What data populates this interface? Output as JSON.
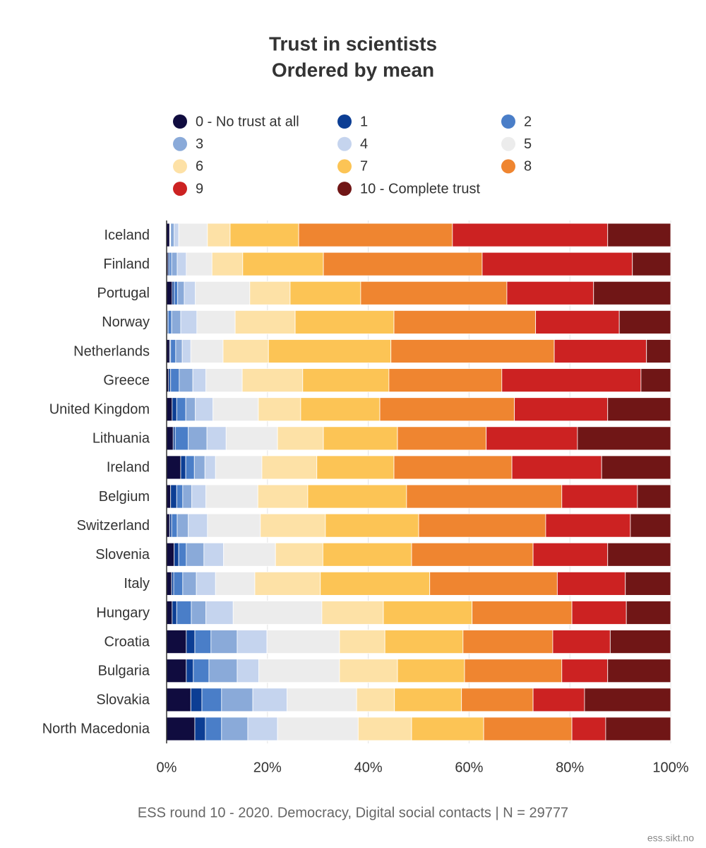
{
  "chart_data": {
    "type": "stacked-barh",
    "title": "Trust in scientists",
    "subtitle": "Ordered by mean",
    "caption": "ESS round 10 - 2020. Democracy, Digital social contacts | N = 29777",
    "source": "ess.sikt.no",
    "categories": [
      "Iceland",
      "Finland",
      "Portugal",
      "Norway",
      "Netherlands",
      "Greece",
      "United Kingdom",
      "Lithuania",
      "Ireland",
      "Belgium",
      "Switzerland",
      "Slovenia",
      "Italy",
      "Hungary",
      "Croatia",
      "Bulgaria",
      "Slovakia",
      "North Macedonia"
    ],
    "xlim": [
      0,
      100
    ],
    "xticks": [
      {
        "value": 0,
        "label": "0%"
      },
      {
        "value": 20,
        "label": "20%"
      },
      {
        "value": 40,
        "label": "40%"
      },
      {
        "value": 60,
        "label": "60%"
      },
      {
        "value": 80,
        "label": "80%"
      },
      {
        "value": 100,
        "label": "100%"
      }
    ],
    "grid": true,
    "series": [
      {
        "name": "0 - No trust at all",
        "color": "#100c3f",
        "values": [
          0.6,
          0.3,
          1.1,
          0.1,
          0.6,
          0.4,
          1.1,
          1.3,
          2.8,
          0.8,
          0.6,
          1.5,
          1.0,
          1.1,
          3.9,
          3.9,
          4.8,
          5.6
        ]
      },
      {
        "name": "1",
        "color": "#0c3e94",
        "values": [
          0.1,
          0.3,
          0.4,
          0.2,
          0.2,
          0.4,
          0.9,
          0.4,
          1.0,
          1.2,
          0.4,
          0.9,
          0.4,
          0.9,
          1.7,
          1.4,
          2.2,
          2.1
        ]
      },
      {
        "name": "2",
        "color": "#4a7ec8",
        "values": [
          0.1,
          0.4,
          0.7,
          0.7,
          1.0,
          1.7,
          1.8,
          2.6,
          1.7,
          1.2,
          1.1,
          1.5,
          1.8,
          2.9,
          3.2,
          3.1,
          3.9,
          3.2
        ]
      },
      {
        "name": "3",
        "color": "#8aaad9",
        "values": [
          0.7,
          1.1,
          1.3,
          1.8,
          1.3,
          2.7,
          1.9,
          3.7,
          2.1,
          1.8,
          2.2,
          3.5,
          2.7,
          2.9,
          5.2,
          5.6,
          6.2,
          5.2
        ]
      },
      {
        "name": "4",
        "color": "#c5d4ee",
        "values": [
          0.9,
          1.8,
          2.2,
          3.2,
          1.7,
          2.6,
          3.5,
          3.8,
          2.1,
          2.8,
          3.8,
          3.9,
          3.8,
          5.4,
          5.9,
          4.3,
          6.8,
          5.9
        ]
      },
      {
        "name": "5",
        "color": "#ececec",
        "values": [
          5.7,
          5.1,
          10.8,
          7.6,
          6.4,
          7.2,
          9.0,
          10.2,
          9.2,
          10.3,
          10.5,
          10.3,
          7.8,
          17.6,
          14.4,
          16.0,
          13.8,
          16.0
        ]
      },
      {
        "name": "6",
        "color": "#fde1a6",
        "values": [
          4.5,
          6.1,
          8.0,
          11.9,
          9.0,
          12.0,
          8.4,
          9.1,
          10.9,
          9.9,
          12.9,
          9.4,
          13.0,
          12.2,
          9.0,
          11.5,
          7.5,
          10.6
        ]
      },
      {
        "name": "7",
        "color": "#fcc455",
        "values": [
          13.6,
          16.0,
          14.0,
          19.6,
          24.3,
          17.1,
          15.7,
          14.7,
          15.3,
          19.6,
          18.5,
          17.6,
          21.7,
          17.6,
          15.5,
          13.3,
          13.3,
          14.3
        ]
      },
      {
        "name": "8",
        "color": "#ef8530",
        "values": [
          30.5,
          31.5,
          29.0,
          28.1,
          32.4,
          22.4,
          26.7,
          17.6,
          23.4,
          30.8,
          25.2,
          24.1,
          25.3,
          19.8,
          17.8,
          19.3,
          14.2,
          17.5
        ]
      },
      {
        "name": "9",
        "color": "#cc2222",
        "values": [
          30.8,
          29.8,
          17.2,
          16.6,
          18.3,
          27.6,
          18.5,
          18.1,
          17.8,
          15.0,
          16.8,
          14.8,
          13.5,
          10.8,
          11.4,
          9.1,
          10.2,
          6.7
        ]
      },
      {
        "name": "10 - Complete trust",
        "color": "#701616",
        "values": [
          12.5,
          7.6,
          15.3,
          10.2,
          4.8,
          5.9,
          12.5,
          18.5,
          13.7,
          6.6,
          8.0,
          12.5,
          9.0,
          8.8,
          12.0,
          12.5,
          17.1,
          12.9
        ]
      }
    ]
  }
}
